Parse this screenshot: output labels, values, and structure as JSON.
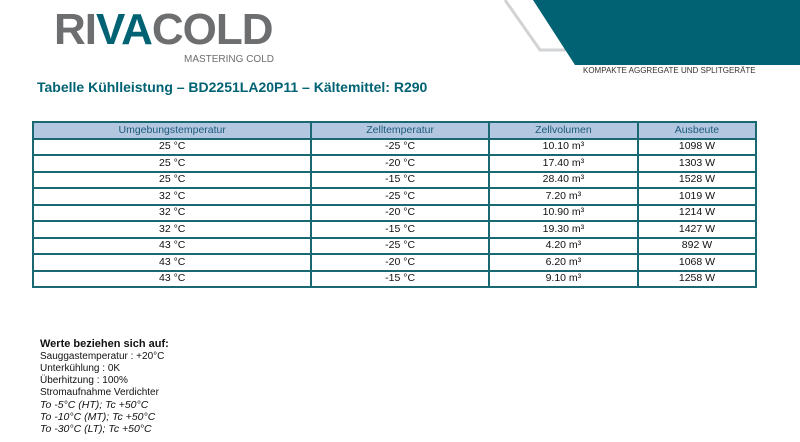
{
  "brand": {
    "logo_text": "RIVACOLD",
    "logo_sub": "MASTERING COLD",
    "tagline": "KOMPAKTE AGGREGATE UND SPLITGERÄTE",
    "accent": "#006272",
    "gray": "#6d6e70"
  },
  "title": "Tabelle Kühlleistung – BD2251LA20P11 – Kältemittel: R290",
  "table": {
    "headers": [
      "Umgebungstemperatur",
      "Zelltemperatur",
      "Zellvolumen",
      "Ausbeute"
    ],
    "rows": [
      [
        "25 °C",
        "-25 °C",
        "10.10 m³",
        "1098 W"
      ],
      [
        "25 °C",
        "-20 °C",
        "17.40 m³",
        "1303 W"
      ],
      [
        "25 °C",
        "-15 °C",
        "28.40 m³",
        "1528 W"
      ],
      [
        "32 °C",
        "-25 °C",
        "7.20 m³",
        "1019 W"
      ],
      [
        "32 °C",
        "-20 °C",
        "10.90 m³",
        "1214 W"
      ],
      [
        "32 °C",
        "-15 °C",
        "19.30 m³",
        "1427 W"
      ],
      [
        "43 °C",
        "-25 °C",
        "4.20 m³",
        "892 W"
      ],
      [
        "43 °C",
        "-20 °C",
        "6.20 m³",
        "1068 W"
      ],
      [
        "43 °C",
        "-15 °C",
        "9.10 m³",
        "1258 W"
      ]
    ]
  },
  "notes": {
    "heading": "Werte beziehen sich auf:",
    "lines": [
      "Sauggastemperatur : +20°C",
      "Unterkühlung : 0K",
      "Überhitzung : 100%",
      "Stromaufnahme Verdichter"
    ],
    "italic_lines": [
      "To -5°C (HT); Tc +50°C",
      "To -10°C (MT); Tc +50°C",
      "To -30°C (LT); Tc +50°C"
    ]
  }
}
